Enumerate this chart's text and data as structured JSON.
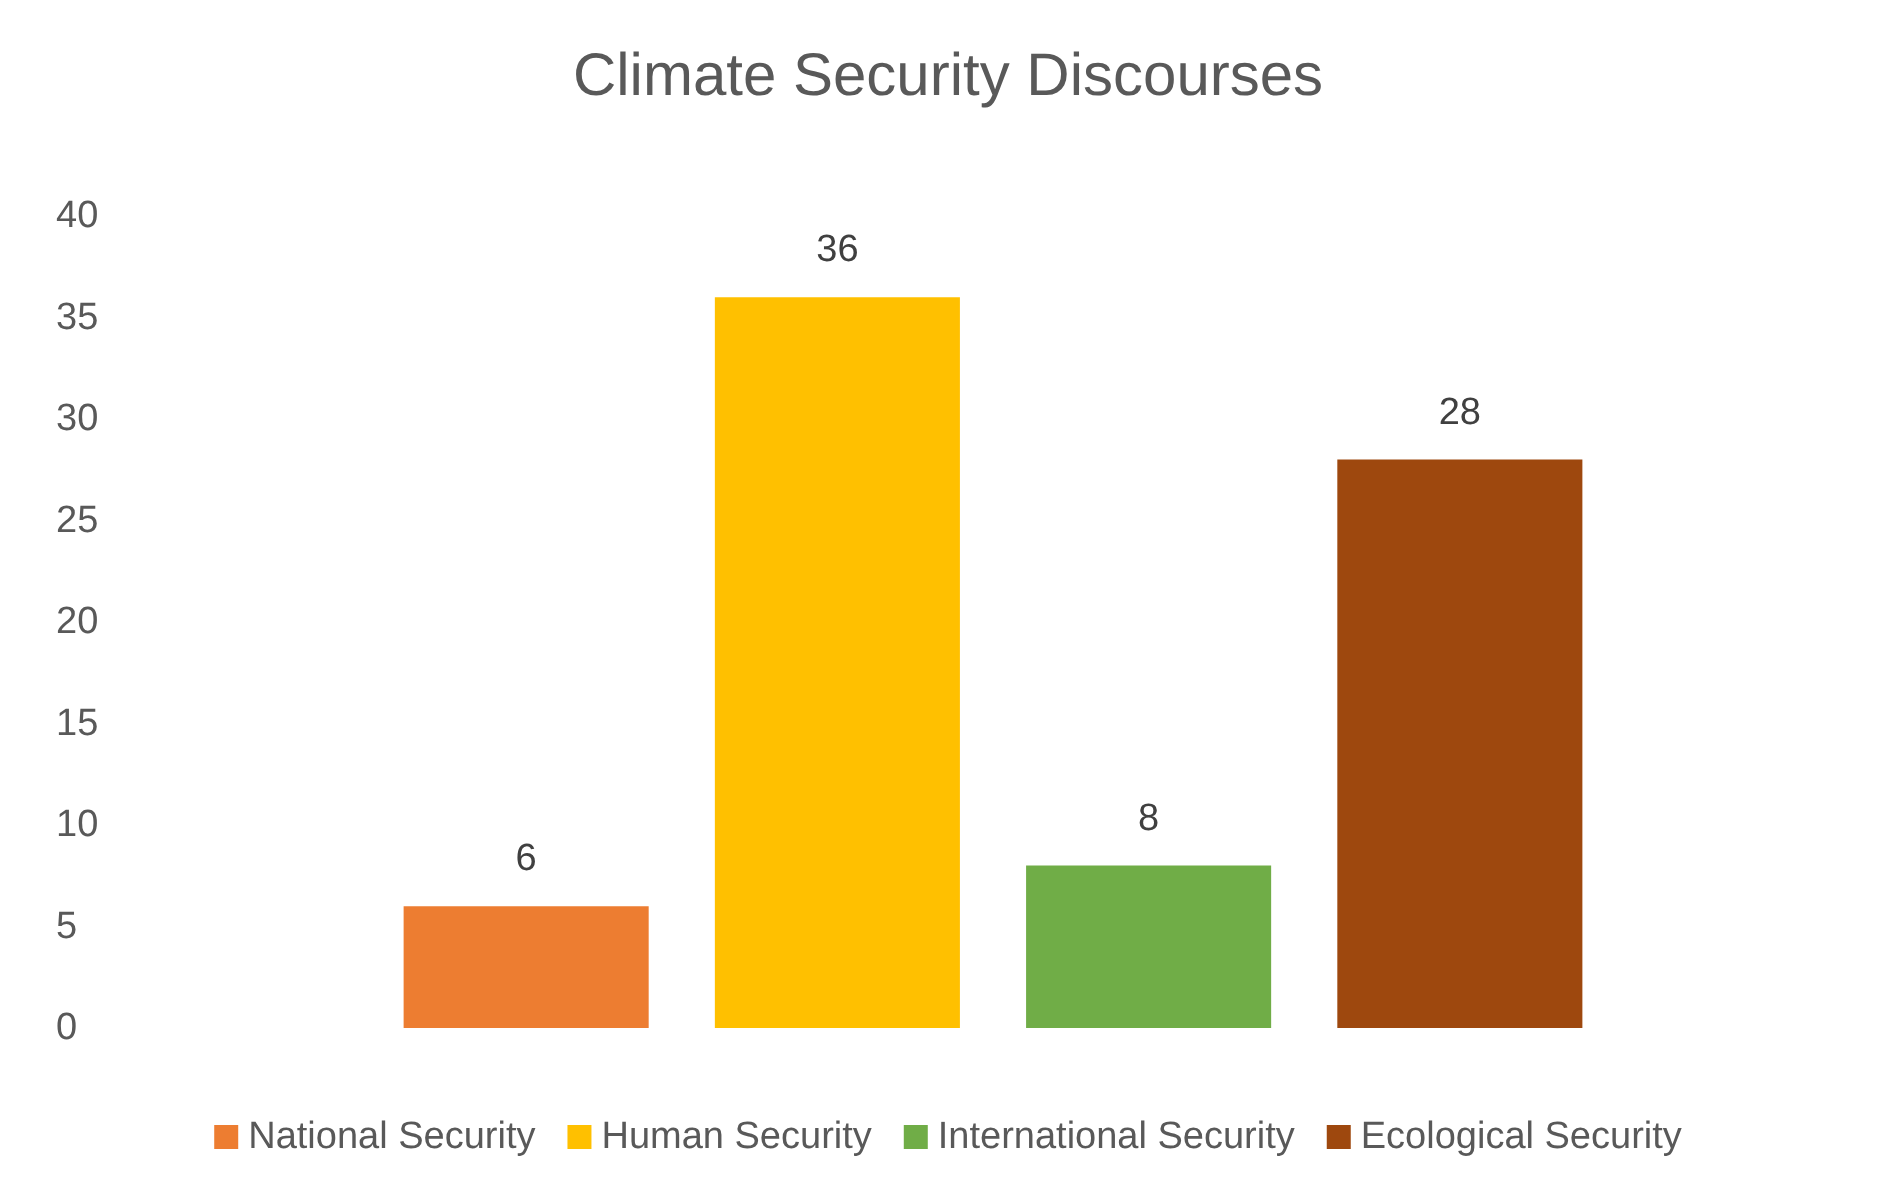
{
  "chart_data": {
    "type": "bar",
    "title": "Climate Security Discourses",
    "categories": [
      null
    ],
    "series": [
      {
        "name": "National Security",
        "color": "#ed7d31",
        "values": [
          6
        ]
      },
      {
        "name": "Human Security",
        "color": "#ffc000",
        "values": [
          36
        ]
      },
      {
        "name": "International Security",
        "color": "#70ad47",
        "values": [
          8
        ]
      },
      {
        "name": "Ecological Security",
        "color": "#9e480e",
        "values": [
          28
        ]
      }
    ],
    "ylim": [
      0,
      40
    ],
    "yticks": [
      0,
      5,
      10,
      15,
      20,
      25,
      30,
      35,
      40
    ],
    "grid": false,
    "legend": "bottom",
    "data_labels": true
  }
}
